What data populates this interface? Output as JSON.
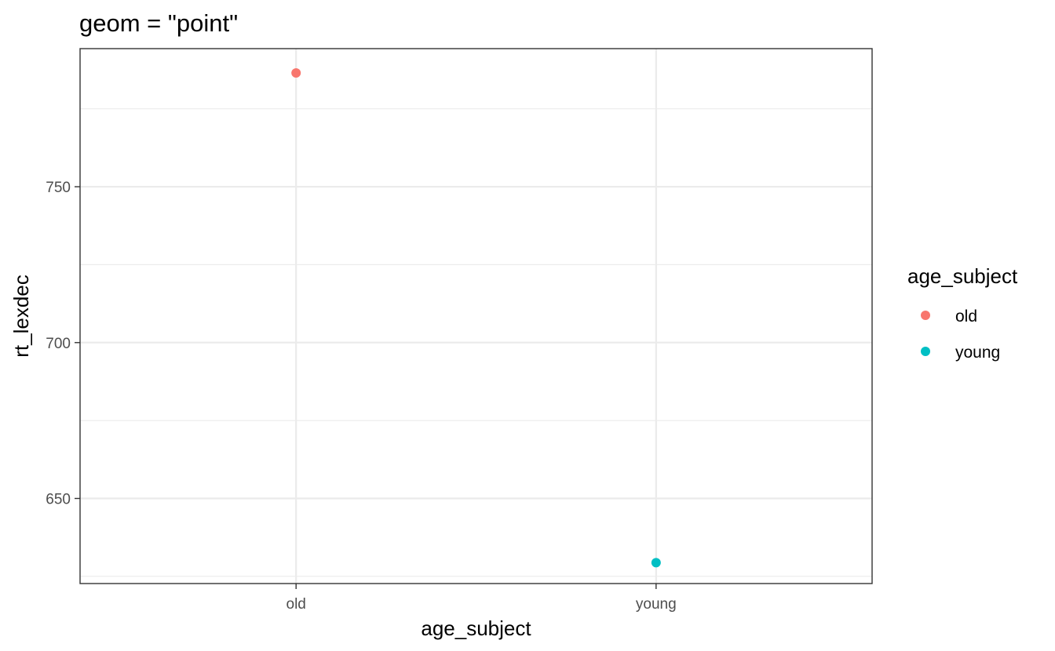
{
  "chart_data": {
    "type": "scatter",
    "title": "geom = \"point\"",
    "xlabel": "age_subject",
    "ylabel": "rt_lexdec",
    "categories": [
      "old",
      "young"
    ],
    "series": [
      {
        "name": "old",
        "category": "old",
        "value": 786.5,
        "color": "#F8766D"
      },
      {
        "name": "young",
        "category": "young",
        "value": 629.4,
        "color": "#00BFC4"
      }
    ],
    "ylim": [
      622.7,
      794.3
    ],
    "yticks": [
      650,
      700,
      750
    ],
    "grid": true,
    "legend": {
      "title": "age_subject",
      "position": "right",
      "entries": [
        {
          "label": "old",
          "color": "#F8766D"
        },
        {
          "label": "young",
          "color": "#00BFC4"
        }
      ]
    }
  }
}
